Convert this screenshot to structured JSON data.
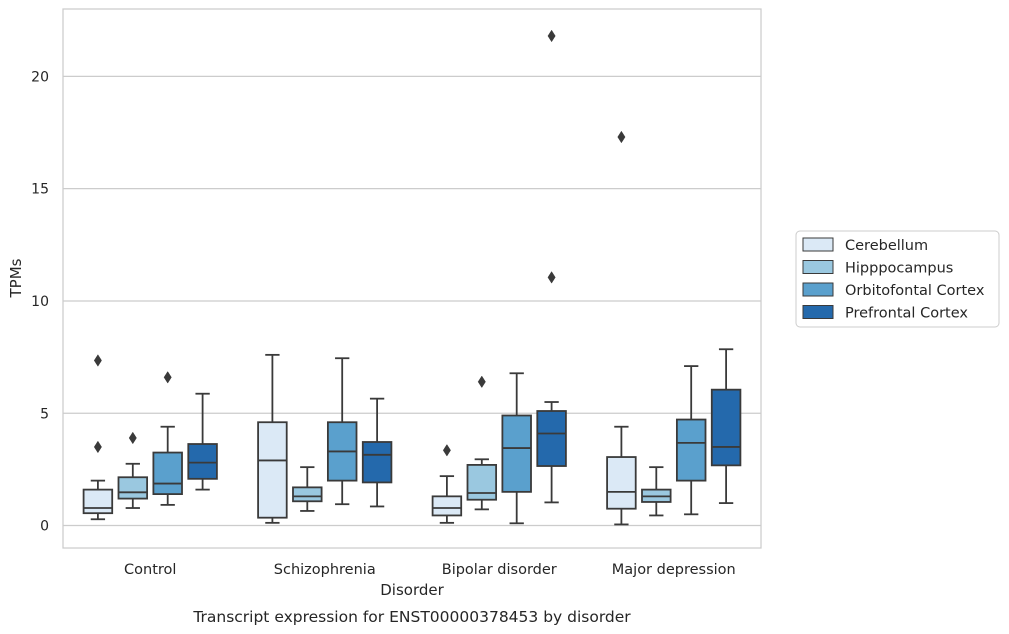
{
  "chart_data": {
    "type": "boxplot",
    "title": "",
    "caption": "Transcript expression for ENST00000378453 by disorder",
    "xlabel": "Disorder",
    "ylabel": "TPMs",
    "ylim": [
      -1,
      23
    ],
    "yticks": [
      0,
      5,
      10,
      15,
      20
    ],
    "grid": "horizontal",
    "legend_position": "right",
    "categories": [
      "Control",
      "Schizophrenia",
      "Bipolar disorder",
      "Major depression"
    ],
    "series": [
      {
        "name": "Cerebellum",
        "color": "#dbe9f6",
        "boxes": [
          {
            "whislo": 0.28,
            "q1": 0.55,
            "med": 0.78,
            "q3": 1.6,
            "whishi": 2.0,
            "fliers": [
              3.5,
              7.35
            ]
          },
          {
            "whislo": 0.12,
            "q1": 0.35,
            "med": 2.9,
            "q3": 4.6,
            "whishi": 7.6,
            "fliers": []
          },
          {
            "whislo": 0.12,
            "q1": 0.45,
            "med": 0.78,
            "q3": 1.3,
            "whishi": 2.2,
            "fliers": [
              3.35
            ]
          },
          {
            "whislo": 0.05,
            "q1": 0.75,
            "med": 1.5,
            "q3": 3.05,
            "whishi": 4.4,
            "fliers": [
              17.3
            ]
          }
        ]
      },
      {
        "name": "Hipppocampus",
        "color": "#9ac8e0",
        "boxes": [
          {
            "whislo": 0.78,
            "q1": 1.2,
            "med": 1.48,
            "q3": 2.15,
            "whishi": 2.75,
            "fliers": [
              3.9
            ]
          },
          {
            "whislo": 0.65,
            "q1": 1.08,
            "med": 1.3,
            "q3": 1.7,
            "whishi": 2.6,
            "fliers": []
          },
          {
            "whislo": 0.72,
            "q1": 1.15,
            "med": 1.45,
            "q3": 2.7,
            "whishi": 2.95,
            "fliers": [
              6.4
            ]
          },
          {
            "whislo": 0.45,
            "q1": 1.05,
            "med": 1.3,
            "q3": 1.6,
            "whishi": 2.6,
            "fliers": []
          }
        ]
      },
      {
        "name": "Orbitofontal Cortex",
        "color": "#5aa0cd",
        "boxes": [
          {
            "whislo": 0.92,
            "q1": 1.4,
            "med": 1.87,
            "q3": 3.25,
            "whishi": 4.4,
            "fliers": [
              6.6
            ]
          },
          {
            "whislo": 0.95,
            "q1": 2.0,
            "med": 3.3,
            "q3": 4.6,
            "whishi": 7.45,
            "fliers": []
          },
          {
            "whislo": 0.1,
            "q1": 1.5,
            "med": 3.45,
            "q3": 4.9,
            "whishi": 6.78,
            "fliers": []
          },
          {
            "whislo": 0.5,
            "q1": 2.0,
            "med": 3.68,
            "q3": 4.72,
            "whishi": 7.1,
            "fliers": []
          }
        ]
      },
      {
        "name": "Prefrontal Cortex",
        "color": "#2469ac",
        "boxes": [
          {
            "whislo": 1.6,
            "q1": 2.08,
            "med": 2.8,
            "q3": 3.63,
            "whishi": 5.87,
            "fliers": []
          },
          {
            "whislo": 0.85,
            "q1": 1.92,
            "med": 3.15,
            "q3": 3.72,
            "whishi": 5.65,
            "fliers": []
          },
          {
            "whislo": 1.03,
            "q1": 2.65,
            "med": 4.1,
            "q3": 5.1,
            "whishi": 5.5,
            "fliers": [
              11.05,
              21.8
            ]
          },
          {
            "whislo": 1.0,
            "q1": 2.68,
            "med": 3.5,
            "q3": 6.05,
            "whishi": 7.85,
            "fliers": []
          }
        ]
      }
    ]
  }
}
